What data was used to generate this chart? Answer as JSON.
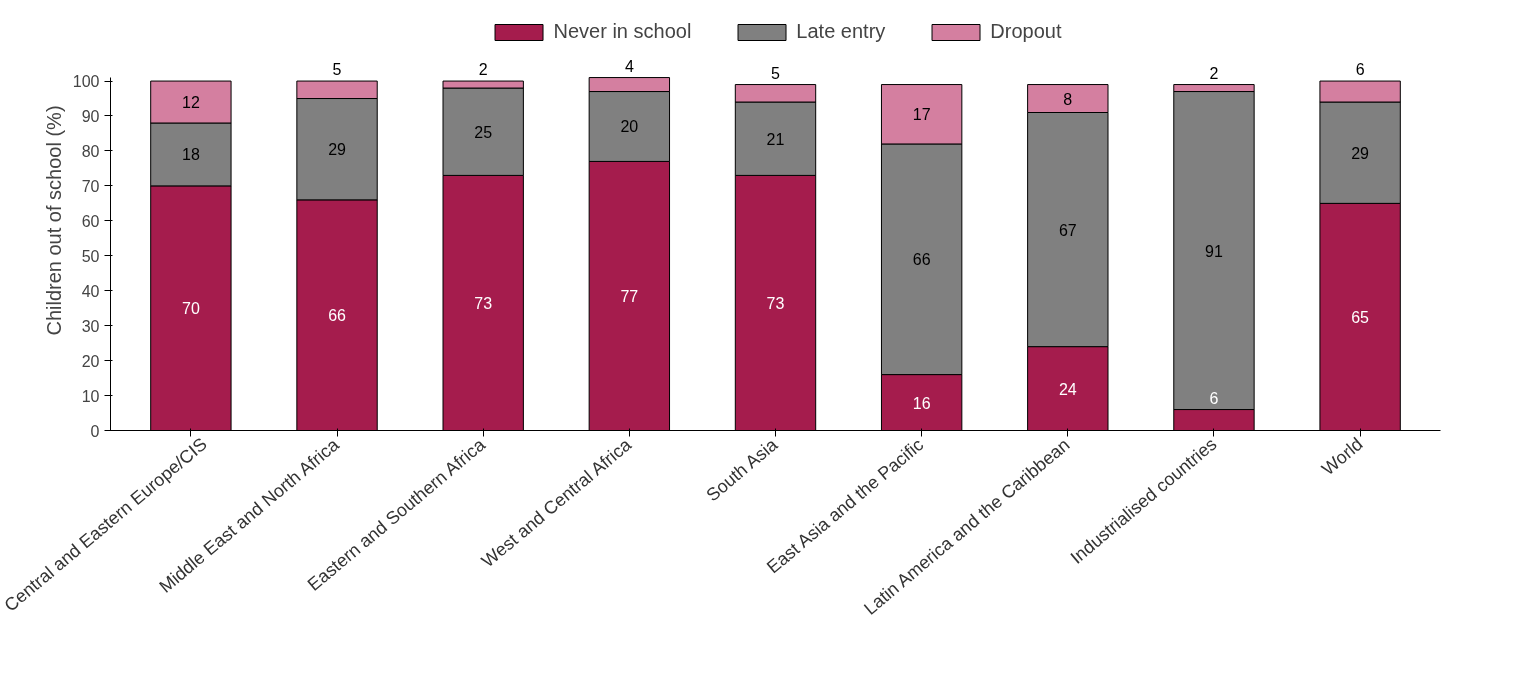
{
  "chart_data": {
    "type": "bar",
    "stacked": true,
    "ylabel": "Children out of school (%)",
    "categories": [
      "Central and Eastern Europe/CIS",
      "Middle East and North Africa",
      "Eastern and Southern Africa",
      "West and Central Africa",
      "South Asia",
      "East Asia and the Pacific",
      "Latin America and the Caribbean",
      "Industrialised countries",
      "World"
    ],
    "series": [
      {
        "name": "Never in school",
        "color": "#a51c4d",
        "values": [
          70,
          66,
          73,
          77,
          73,
          16,
          24,
          6,
          65
        ]
      },
      {
        "name": "Late entry",
        "color": "#808080",
        "values": [
          18,
          29,
          25,
          20,
          21,
          66,
          67,
          91,
          29
        ]
      },
      {
        "name": "Dropout",
        "color": "#d47fa0",
        "values": [
          12,
          5,
          2,
          4,
          5,
          17,
          8,
          2,
          6
        ]
      }
    ],
    "ylim": [
      0,
      101
    ],
    "yticks": [
      0,
      10,
      20,
      30,
      40,
      50,
      60,
      70,
      80,
      90,
      100
    ],
    "data_labels": true,
    "grid": false,
    "legend": "top"
  }
}
